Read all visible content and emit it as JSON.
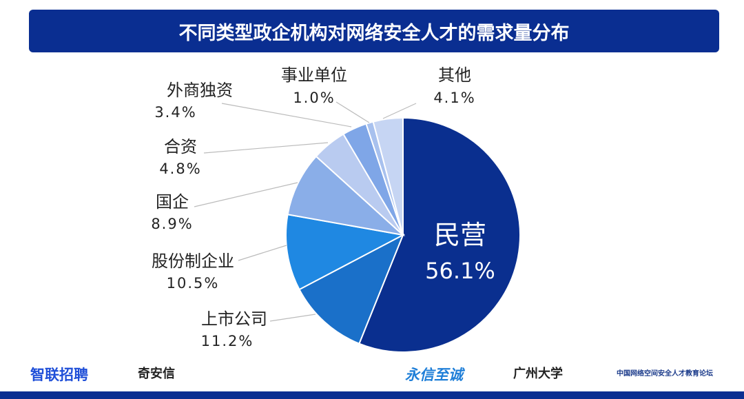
{
  "chart_data": {
    "type": "pie",
    "title": "不同类型政企机构对网络安全人才的需求量分布",
    "categories": [
      "民营",
      "上市公司",
      "股份制企业",
      "国企",
      "合资",
      "外商独资",
      "事业单位",
      "其他"
    ],
    "values": [
      56.1,
      11.2,
      10.5,
      8.9,
      4.8,
      3.4,
      1.0,
      4.1
    ],
    "labels": [
      "56.1%",
      "11.2%",
      "10.5%",
      "8.9%",
      "4.8%",
      "3.4%",
      "1.0%",
      "4.1%"
    ],
    "colors": [
      "#0a2f8f",
      "#1a70c9",
      "#1f88e2",
      "#8aaee8",
      "#b9cbf0",
      "#7fa6e7",
      "#a8c1ee",
      "#c6d5f3"
    ],
    "start": "top",
    "direction": "clockwise"
  },
  "logos": [
    "智联招聘",
    "奇安信",
    "永信至诚",
    "广州大学",
    "中国网络空间安全人才教育论坛"
  ],
  "colors": {
    "accent": "#0a2e91"
  }
}
